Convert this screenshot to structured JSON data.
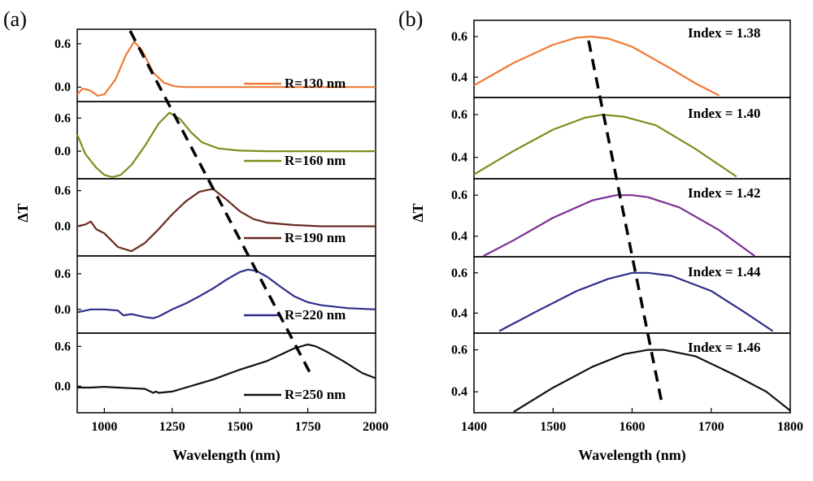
{
  "chart_data": [
    {
      "panel_label": "(a)",
      "type": "line",
      "xlabel": "Wavelength (nm)",
      "ylabel": "ΔT",
      "xlim": [
        900,
        2000
      ],
      "xticks": [
        "1000",
        "1250",
        "1500",
        "1750",
        "2000"
      ],
      "subplots": [
        {
          "name": "R=130 nm",
          "color": "#f07a36",
          "ylim": [
            -0.2,
            0.8
          ],
          "yticks": [
            "0.6",
            "0.0"
          ],
          "x": [
            900,
            920,
            950,
            975,
            1000,
            1040,
            1080,
            1110,
            1140,
            1180,
            1220,
            1260,
            1300,
            1400,
            1500,
            1600,
            1800,
            2000
          ],
          "y": [
            -0.1,
            -0.02,
            -0.05,
            -0.12,
            -0.1,
            0.1,
            0.45,
            0.63,
            0.5,
            0.2,
            0.06,
            0.01,
            0.0,
            0.0,
            0.0,
            0.0,
            0.0,
            0.0
          ]
        },
        {
          "name": "R=160 nm",
          "color": "#7f8c1e",
          "ylim": [
            -0.5,
            0.9
          ],
          "yticks": [
            "0.6",
            "0.0"
          ],
          "x": [
            900,
            930,
            970,
            1000,
            1030,
            1060,
            1100,
            1150,
            1200,
            1240,
            1280,
            1320,
            1360,
            1420,
            1500,
            1600,
            1800,
            2000
          ],
          "y": [
            0.3,
            -0.05,
            -0.3,
            -0.43,
            -0.47,
            -0.43,
            -0.25,
            0.1,
            0.5,
            0.7,
            0.58,
            0.34,
            0.16,
            0.05,
            0.01,
            0.0,
            0.0,
            0.0
          ]
        },
        {
          "name": "R=190 nm",
          "color": "#6b2a22",
          "ylim": [
            -0.5,
            0.8
          ],
          "yticks": [
            "0.6",
            "0.0"
          ],
          "x": [
            900,
            930,
            950,
            970,
            1000,
            1050,
            1100,
            1150,
            1200,
            1250,
            1300,
            1350,
            1400,
            1450,
            1500,
            1550,
            1600,
            1700,
            1800,
            2000
          ],
          "y": [
            0.0,
            0.03,
            0.08,
            -0.05,
            -0.12,
            -0.35,
            -0.42,
            -0.28,
            -0.05,
            0.2,
            0.42,
            0.58,
            0.63,
            0.45,
            0.25,
            0.12,
            0.06,
            0.02,
            0.0,
            0.0
          ]
        },
        {
          "name": "R=220 nm",
          "color": "#2e2d8c",
          "ylim": [
            -0.4,
            0.9
          ],
          "yticks": [
            "0.6",
            "0.0"
          ],
          "x": [
            900,
            950,
            1000,
            1050,
            1070,
            1100,
            1150,
            1180,
            1200,
            1250,
            1300,
            1350,
            1400,
            1450,
            1500,
            1530,
            1560,
            1600,
            1650,
            1700,
            1750,
            1800,
            1900,
            2000
          ],
          "y": [
            -0.05,
            0.0,
            0.0,
            -0.02,
            -0.1,
            -0.08,
            -0.13,
            -0.15,
            -0.12,
            0.0,
            0.1,
            0.22,
            0.35,
            0.5,
            0.63,
            0.67,
            0.65,
            0.55,
            0.38,
            0.22,
            0.12,
            0.07,
            0.02,
            0.0
          ]
        },
        {
          "name": "R=250 nm",
          "color": "#111111",
          "ylim": [
            -0.4,
            0.8
          ],
          "yticks": [
            "0.6",
            "0.0"
          ],
          "x": [
            900,
            950,
            1000,
            1050,
            1100,
            1150,
            1180,
            1190,
            1200,
            1250,
            1300,
            1400,
            1500,
            1600,
            1700,
            1750,
            1780,
            1820,
            1880,
            1950,
            2000
          ],
          "y": [
            -0.02,
            -0.02,
            -0.01,
            -0.02,
            -0.03,
            -0.04,
            -0.1,
            -0.08,
            -0.1,
            -0.08,
            -0.02,
            0.1,
            0.25,
            0.38,
            0.57,
            0.63,
            0.6,
            0.52,
            0.38,
            0.2,
            0.12
          ]
        }
      ],
      "trend_line": {
        "x": [
          1095,
          1760
        ]
      }
    },
    {
      "panel_label": "(b)",
      "type": "line",
      "xlabel": "Wavelength (nm)",
      "ylabel": "ΔT",
      "xlim": [
        1400,
        1800
      ],
      "xticks": [
        "1400",
        "1500",
        "1600",
        "1700",
        "1800"
      ],
      "subplots": [
        {
          "name": "Index = 1.38",
          "color": "#f07a36",
          "ylim": [
            0.3,
            0.68
          ],
          "yticks": [
            "0.6",
            "0.4"
          ],
          "x": [
            1400,
            1450,
            1500,
            1530,
            1548,
            1570,
            1600,
            1650,
            1680,
            1710
          ],
          "y": [
            0.36,
            0.47,
            0.56,
            0.595,
            0.6,
            0.59,
            0.55,
            0.44,
            0.37,
            0.31
          ]
        },
        {
          "name": "Index = 1.40",
          "color": "#7f8c1e",
          "ylim": [
            0.3,
            0.68
          ],
          "yticks": [
            "0.6",
            "0.4"
          ],
          "x": [
            1400,
            1450,
            1500,
            1540,
            1563,
            1590,
            1630,
            1680,
            1732
          ],
          "y": [
            0.32,
            0.43,
            0.53,
            0.585,
            0.6,
            0.59,
            0.55,
            0.44,
            0.31
          ]
        },
        {
          "name": "Index = 1.42",
          "color": "#7b2f95",
          "ylim": [
            0.3,
            0.68
          ],
          "yticks": [
            "0.6",
            "0.4"
          ],
          "x": [
            1412,
            1450,
            1500,
            1550,
            1580,
            1600,
            1620,
            1660,
            1710,
            1755
          ],
          "y": [
            0.3,
            0.38,
            0.49,
            0.575,
            0.6,
            0.6,
            0.59,
            0.54,
            0.43,
            0.3
          ]
        },
        {
          "name": "Index = 1.44",
          "color": "#2e2d8c",
          "ylim": [
            0.3,
            0.68
          ],
          "yticks": [
            "0.6",
            "0.4"
          ],
          "x": [
            1432,
            1480,
            1530,
            1570,
            1600,
            1620,
            1650,
            1700,
            1740,
            1778
          ],
          "y": [
            0.31,
            0.41,
            0.51,
            0.57,
            0.6,
            0.6,
            0.585,
            0.51,
            0.41,
            0.31
          ]
        },
        {
          "name": "Index = 1.46",
          "color": "#111111",
          "ylim": [
            0.3,
            0.68
          ],
          "yticks": [
            "0.6",
            "0.4"
          ],
          "x": [
            1450,
            1500,
            1550,
            1590,
            1620,
            1640,
            1680,
            1730,
            1770,
            1800
          ],
          "y": [
            0.3,
            0.42,
            0.52,
            0.58,
            0.6,
            0.6,
            0.57,
            0.48,
            0.4,
            0.31
          ]
        }
      ],
      "trend_line": {
        "x": [
          1545,
          1638
        ]
      }
    }
  ]
}
